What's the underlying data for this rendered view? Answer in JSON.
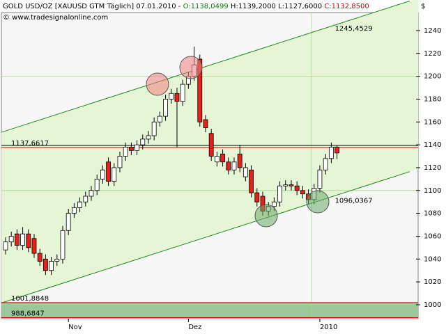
{
  "chart_data": {
    "type": "candlestick",
    "header": [
      "GOLD USD/OZ [XAUUSD GTM  Täglich] 07.01.2010 - ",
      "O:1138,0499",
      " H:1139,2000",
      " L:1127,6000",
      " C:1132,8500"
    ],
    "header_colors": [
      "#000000",
      "#008000",
      "#000000",
      "#000000",
      "#c00000"
    ],
    "copyright": "© www.tradesignalonline.com",
    "currency": "$",
    "x": [
      0,
      1,
      2,
      3,
      4,
      5,
      6,
      7,
      8,
      9,
      10,
      11,
      12,
      13,
      14,
      15,
      16,
      17,
      18,
      19,
      20,
      21,
      22,
      23,
      24,
      25,
      26,
      27,
      28,
      29,
      30,
      31,
      32,
      33,
      34,
      35,
      36,
      37,
      38,
      39,
      40,
      41,
      42,
      43,
      44,
      45,
      46,
      47,
      48,
      49,
      50,
      51,
      52,
      53,
      54,
      55,
      56,
      57,
      58
    ],
    "open": [
      1048,
      1055,
      1062,
      1052,
      1062,
      1058,
      1045,
      1040,
      1030,
      1038,
      1040,
      1065,
      1080,
      1085,
      1090,
      1095,
      1100,
      1110,
      1125,
      1108,
      1120,
      1130,
      1138,
      1135,
      1140,
      1145,
      1148,
      1160,
      1165,
      1180,
      1185,
      1178,
      1193,
      1200,
      1215,
      1162,
      1150,
      1125,
      1132,
      1125,
      1118,
      1132,
      1112,
      1118,
      1098,
      1095,
      1082,
      1086,
      1090,
      1104,
      1105,
      1104,
      1100,
      1097,
      1092,
      1102,
      1118,
      1128,
      1138.0499
    ],
    "high": [
      1059,
      1064,
      1066,
      1068,
      1066,
      1062,
      1049,
      1044,
      1042,
      1044,
      1069,
      1084,
      1089,
      1094,
      1099,
      1104,
      1114,
      1122,
      1129,
      1124,
      1134,
      1142,
      1142,
      1144,
      1149,
      1152,
      1164,
      1169,
      1184,
      1189,
      1190,
      1197,
      1204,
      1226,
      1219,
      1166,
      1154,
      1134,
      1136,
      1129,
      1129,
      1140,
      1124,
      1122,
      1102,
      1099,
      1090,
      1094,
      1108,
      1109,
      1109,
      1108,
      1104,
      1101,
      1106,
      1122,
      1132,
      1142,
      1139.2
    ],
    "low": [
      1044,
      1051,
      1048,
      1048,
      1046,
      1041,
      1034,
      1026,
      1026,
      1034,
      1036,
      1061,
      1076,
      1081,
      1086,
      1091,
      1096,
      1106,
      1104,
      1104,
      1116,
      1126,
      1131,
      1131,
      1136,
      1141,
      1144,
      1156,
      1161,
      1176,
      1138,
      1174,
      1189,
      1196,
      1156,
      1151,
      1126,
      1121,
      1121,
      1114,
      1114,
      1116,
      1108,
      1094,
      1086,
      1078,
      1078,
      1082,
      1086,
      1100,
      1100,
      1096,
      1093,
      1088,
      1088,
      1098,
      1114,
      1124,
      1127.6
    ],
    "close": [
      1055,
      1060,
      1052,
      1062,
      1050,
      1045,
      1038,
      1030,
      1038,
      1040,
      1065,
      1080,
      1085,
      1090,
      1095,
      1100,
      1110,
      1118,
      1108,
      1120,
      1130,
      1138,
      1135,
      1140,
      1145,
      1148,
      1160,
      1165,
      1180,
      1185,
      1178,
      1193,
      1200,
      1210,
      1160,
      1155,
      1130,
      1130,
      1125,
      1118,
      1125,
      1120,
      1120,
      1098,
      1090,
      1082,
      1086,
      1090,
      1104,
      1105,
      1104,
      1100,
      1097,
      1092,
      1102,
      1118,
      1128,
      1138,
      1132.85
    ],
    "up_color": "#ffffff",
    "down_color": "#e8221a",
    "xlim": [
      -0.73,
      72.2
    ],
    "xticks": [
      {
        "value": 11,
        "label": "Nov"
      },
      {
        "value": 32,
        "label": "Dez"
      },
      {
        "value": 55,
        "label": "2010"
      }
    ],
    "ylim": [
      987.8,
      1255.8
    ],
    "yticks": [
      1000,
      1020,
      1040,
      1060,
      1080,
      1100,
      1120,
      1140,
      1160,
      1180,
      1200,
      1220,
      1240
    ],
    "levels": [
      {
        "value": 1137.6617,
        "label": "1137,6617",
        "color": "#d00000"
      },
      {
        "value": 1001.8848,
        "label": "1001,8848",
        "color": "#d00000"
      },
      {
        "value": 988.6847,
        "label": "988,6847",
        "color": "#d00000"
      }
    ],
    "channel_labels": [
      {
        "value": 1245.4529,
        "label": "1245,4529",
        "color": "#006000"
      },
      {
        "value": 1096.0367,
        "label": "1096,0367",
        "color": "#006000"
      }
    ]
  }
}
